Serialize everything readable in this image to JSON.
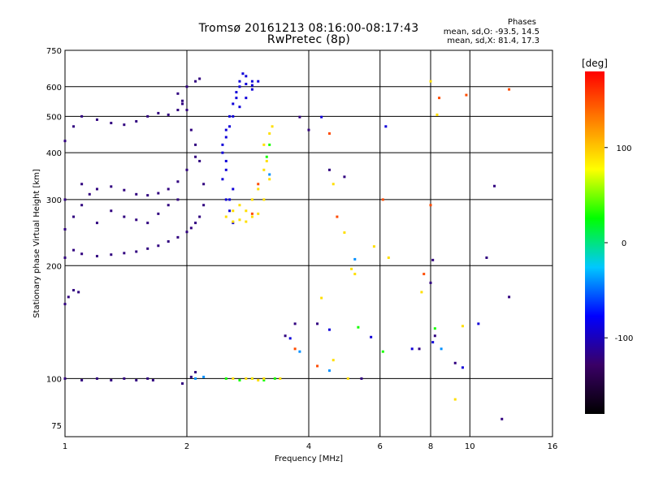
{
  "title": "Tromsø 20161213 08:16:00-08:17:43",
  "subtitle": "RwPretec (8p)",
  "stats": {
    "heading": "Phases",
    "line_o": "mean, sd,O: -93.5, 14.5",
    "line_x": "mean, sd,X: 81.4, 17.3"
  },
  "chart_data": {
    "type": "scatter",
    "xlabel": "Frequency [MHz]",
    "ylabel": "Stationary phase Virtual Height [km]",
    "xscale": "log",
    "yscale": "log",
    "xlim": [
      1,
      16
    ],
    "ylim": [
      70,
      750
    ],
    "x_ticks": [
      1,
      2,
      4,
      6,
      8,
      10,
      16
    ],
    "y_ticks": [
      75,
      100,
      200,
      300,
      400,
      500,
      600,
      750
    ],
    "y_ticks_shown": [
      75,
      100,
      200,
      300,
      400,
      500,
      600,
      750
    ],
    "grid": true,
    "colorbar": {
      "label": "[deg]",
      "range": [
        -180,
        180
      ],
      "ticks": [
        -100,
        0,
        100
      ],
      "colors": [
        "#000000",
        "#3a0066",
        "#0000ff",
        "#00c8ff",
        "#00ff00",
        "#ffff00",
        "#ff8000",
        "#ff0000"
      ]
    },
    "series": [
      {
        "phase": -120,
        "points": [
          [
            1.0,
            210
          ],
          [
            1.05,
            220
          ],
          [
            1.1,
            215
          ],
          [
            1.2,
            212
          ],
          [
            1.3,
            214
          ],
          [
            1.4,
            216
          ],
          [
            1.5,
            218
          ],
          [
            1.6,
            222
          ],
          [
            1.7,
            226
          ],
          [
            1.8,
            232
          ],
          [
            1.9,
            238
          ],
          [
            2.0,
            246
          ],
          [
            2.05,
            252
          ],
          [
            2.1,
            260
          ],
          [
            2.15,
            270
          ],
          [
            2.2,
            290
          ],
          [
            2.2,
            330
          ],
          [
            2.15,
            380
          ],
          [
            2.1,
            420
          ],
          [
            2.05,
            460
          ],
          [
            2.0,
            520
          ],
          [
            1.95,
            550
          ],
          [
            1.9,
            575
          ],
          [
            2.0,
            600
          ],
          [
            2.1,
            620
          ],
          [
            2.15,
            630
          ],
          [
            1.0,
            250
          ],
          [
            1.05,
            270
          ],
          [
            1.1,
            290
          ],
          [
            1.15,
            310
          ],
          [
            1.2,
            320
          ],
          [
            1.3,
            325
          ],
          [
            1.4,
            318
          ],
          [
            1.5,
            310
          ],
          [
            1.6,
            308
          ],
          [
            1.7,
            312
          ],
          [
            1.8,
            320
          ],
          [
            1.9,
            335
          ],
          [
            2.0,
            360
          ],
          [
            2.1,
            390
          ],
          [
            1.0,
            300
          ],
          [
            1.1,
            330
          ],
          [
            1.2,
            260
          ],
          [
            1.3,
            280
          ],
          [
            1.4,
            270
          ],
          [
            1.5,
            265
          ],
          [
            1.6,
            260
          ],
          [
            1.7,
            275
          ],
          [
            1.8,
            290
          ],
          [
            1.9,
            300
          ],
          [
            1.0,
            430
          ],
          [
            1.05,
            470
          ],
          [
            1.1,
            500
          ],
          [
            1.2,
            490
          ],
          [
            1.3,
            480
          ],
          [
            1.4,
            475
          ],
          [
            1.5,
            485
          ],
          [
            1.6,
            500
          ],
          [
            1.7,
            510
          ],
          [
            1.8,
            505
          ],
          [
            1.9,
            520
          ],
          [
            1.95,
            540
          ],
          [
            1.02,
            165
          ],
          [
            1.05,
            172
          ],
          [
            1.08,
            170
          ],
          [
            1.0,
            158
          ],
          [
            1.0,
            100
          ],
          [
            1.1,
            99
          ],
          [
            1.2,
            100
          ],
          [
            1.3,
            99
          ],
          [
            1.4,
            100
          ],
          [
            1.5,
            99
          ],
          [
            1.6,
            100
          ],
          [
            1.65,
            99
          ],
          [
            2.05,
            101
          ],
          [
            2.1,
            104
          ],
          [
            1.95,
            97
          ],
          [
            4.0,
            460
          ],
          [
            4.5,
            360
          ],
          [
            4.9,
            345
          ],
          [
            8.1,
            207
          ],
          [
            8.0,
            180
          ],
          [
            7.5,
            120
          ],
          [
            8.2,
            130
          ],
          [
            11.0,
            210
          ],
          [
            12.5,
            165
          ],
          [
            12.0,
            78
          ],
          [
            9.2,
            110
          ],
          [
            11.5,
            326
          ],
          [
            3.8,
            498
          ],
          [
            3.7,
            140
          ],
          [
            3.5,
            130
          ],
          [
            4.2,
            140
          ],
          [
            5.4,
            100
          ]
        ]
      },
      {
        "phase": -90,
        "points": [
          [
            2.45,
            420
          ],
          [
            2.5,
            460
          ],
          [
            2.55,
            500
          ],
          [
            2.6,
            540
          ],
          [
            2.65,
            580
          ],
          [
            2.7,
            620
          ],
          [
            2.75,
            650
          ],
          [
            2.8,
            640
          ],
          [
            2.9,
            620
          ],
          [
            2.5,
            380
          ],
          [
            2.45,
            340
          ],
          [
            2.5,
            300
          ],
          [
            2.55,
            280
          ],
          [
            2.6,
            260
          ],
          [
            2.7,
            600
          ],
          [
            2.8,
            560
          ],
          [
            2.9,
            590
          ],
          [
            3.0,
            620
          ],
          [
            2.6,
            500
          ],
          [
            2.7,
            530
          ],
          [
            2.5,
            440
          ],
          [
            2.55,
            470
          ],
          [
            2.65,
            560
          ],
          [
            2.8,
            610
          ],
          [
            2.9,
            605
          ],
          [
            2.45,
            400
          ],
          [
            2.5,
            360
          ],
          [
            2.6,
            320
          ],
          [
            2.55,
            300
          ],
          [
            4.3,
            498
          ],
          [
            3.6,
            128
          ],
          [
            6.2,
            470
          ],
          [
            7.2,
            120
          ],
          [
            8.1,
            125
          ],
          [
            10.5,
            140
          ],
          [
            9.6,
            107
          ],
          [
            5.7,
            129
          ],
          [
            4.5,
            135
          ]
        ]
      },
      {
        "phase": -40,
        "points": [
          [
            3.2,
            350
          ],
          [
            5.2,
            208
          ],
          [
            8.5,
            120
          ],
          [
            4.5,
            105
          ],
          [
            3.8,
            118
          ],
          [
            2.1,
            100
          ],
          [
            2.2,
            101
          ]
        ]
      },
      {
        "phase": 30,
        "points": [
          [
            2.5,
            100
          ],
          [
            2.7,
            99
          ],
          [
            2.9,
            100
          ],
          [
            3.1,
            99
          ],
          [
            3.3,
            100
          ],
          [
            5.3,
            137
          ],
          [
            8.2,
            136
          ],
          [
            6.1,
            118
          ],
          [
            3.2,
            420
          ],
          [
            3.15,
            390
          ]
        ]
      },
      {
        "phase": 90,
        "points": [
          [
            2.5,
            270
          ],
          [
            2.6,
            280
          ],
          [
            2.7,
            290
          ],
          [
            2.8,
            280
          ],
          [
            2.9,
            270
          ],
          [
            3.0,
            275
          ],
          [
            3.1,
            300
          ],
          [
            3.2,
            340
          ],
          [
            3.15,
            380
          ],
          [
            3.1,
            420
          ],
          [
            3.2,
            450
          ],
          [
            3.25,
            470
          ],
          [
            3.0,
            320
          ],
          [
            2.9,
            300
          ],
          [
            3.1,
            360
          ],
          [
            2.6,
            262
          ],
          [
            2.7,
            265
          ],
          [
            2.8,
            262
          ],
          [
            2.9,
            100
          ],
          [
            3.0,
            99
          ],
          [
            3.1,
            100
          ],
          [
            2.8,
            100
          ],
          [
            2.6,
            100
          ],
          [
            3.4,
            100
          ],
          [
            4.6,
            112
          ],
          [
            5.0,
            100
          ],
          [
            7.6,
            170
          ],
          [
            8.0,
            620
          ],
          [
            9.6,
            138
          ],
          [
            9.2,
            88
          ],
          [
            4.3,
            164
          ],
          [
            4.6,
            330
          ],
          [
            5.2,
            190
          ],
          [
            6.3,
            210
          ],
          [
            8.3,
            505
          ],
          [
            5.1,
            196
          ],
          [
            4.9,
            245
          ],
          [
            5.8,
            225
          ]
        ]
      },
      {
        "phase": 150,
        "points": [
          [
            2.9,
            275
          ],
          [
            3.0,
            330
          ],
          [
            4.7,
            270
          ],
          [
            3.7,
            120
          ],
          [
            4.2,
            108
          ],
          [
            6.1,
            300
          ],
          [
            8.0,
            290
          ],
          [
            9.8,
            570
          ],
          [
            12.5,
            590
          ],
          [
            7.7,
            190
          ],
          [
            4.5,
            450
          ],
          [
            8.4,
            560
          ]
        ]
      }
    ]
  }
}
